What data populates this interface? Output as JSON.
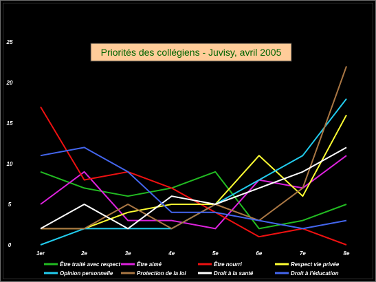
{
  "chart_data": {
    "type": "line",
    "title": "Priorités des collégiens - Juvisy, avril 2005",
    "xlabel": "",
    "ylabel": "",
    "categories": [
      "1er",
      "2e",
      "3e",
      "4e",
      "5e",
      "6e",
      "7e",
      "8e"
    ],
    "ylim": [
      0,
      25
    ],
    "yticks": [
      0,
      5,
      10,
      15,
      20,
      25
    ],
    "grid": false,
    "legend_position": "bottom",
    "background": "#000000",
    "title_box_color": "#ffcc99",
    "series": [
      {
        "name": "Être traité avec respect",
        "color": "#22bb22",
        "values": [
          9,
          7,
          6,
          7,
          9,
          2,
          3,
          5
        ]
      },
      {
        "name": "Être aimé",
        "color": "#dd22dd",
        "values": [
          5,
          9,
          3,
          3,
          2,
          8,
          7,
          11
        ]
      },
      {
        "name": "Être nourri",
        "color": "#ee1111",
        "values": [
          17,
          8,
          9,
          7,
          4,
          1,
          2,
          0
        ]
      },
      {
        "name": "Respect vie privée",
        "color": "#ffff33",
        "values": [
          2,
          2,
          4,
          5,
          5,
          11,
          6,
          16
        ]
      },
      {
        "name": "Opinion personnelle",
        "color": "#22ccee",
        "values": [
          0,
          2,
          2,
          2,
          5,
          8,
          11,
          18
        ]
      },
      {
        "name": "Protection de la loi",
        "color": "#aa7744",
        "values": [
          2,
          2,
          5,
          2,
          5,
          3,
          7,
          22
        ]
      },
      {
        "name": "Droit à la santé",
        "color": "#ffffff",
        "values": [
          2,
          5,
          2,
          6,
          5,
          7,
          9,
          12
        ]
      },
      {
        "name": "Droit à  l'éducation",
        "color": "#4466ee",
        "values": [
          11,
          12,
          9,
          4,
          4,
          3,
          2,
          3
        ]
      }
    ]
  }
}
